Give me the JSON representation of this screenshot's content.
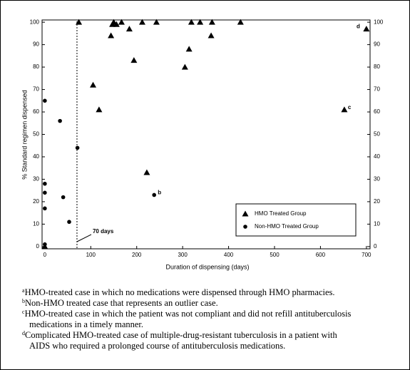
{
  "chart_data": {
    "type": "scatter",
    "x_label": "Duration of dispensing (days)",
    "y_label": "% Standard regimen dispensed",
    "xlim": [
      -6,
      708
    ],
    "ylim": [
      -1,
      101
    ],
    "xticks": [
      0,
      100,
      200,
      300,
      400,
      500,
      600,
      700
    ],
    "yticks": [
      0,
      10,
      20,
      30,
      40,
      50,
      60,
      70,
      80,
      90,
      100
    ],
    "reference_line": {
      "x": 70,
      "label": "70 days"
    },
    "legend": "lower right",
    "series": [
      {
        "name": "HMO Treated Group",
        "marker": "triangle",
        "color": "#000000",
        "x": [
          0,
          74,
          105,
          118,
          144,
          147,
          150,
          156,
          167,
          184,
          194,
          212,
          222,
          243,
          305,
          314,
          319,
          338,
          362,
          364,
          426,
          652,
          700
        ],
        "values": [
          0,
          100,
          72,
          61,
          94,
          99,
          100,
          99,
          100,
          97,
          83,
          100,
          33,
          100,
          80,
          88,
          100,
          100,
          94,
          100,
          100,
          61,
          97
        ],
        "point_labels": [
          null,
          null,
          null,
          null,
          null,
          null,
          null,
          null,
          null,
          null,
          null,
          null,
          null,
          null,
          null,
          null,
          null,
          null,
          null,
          null,
          null,
          "c",
          "d"
        ]
      },
      {
        "name": "Non-HMO Treated Group",
        "marker": "circle",
        "color": "#000000",
        "x": [
          0,
          0,
          0,
          0,
          0,
          33,
          40,
          53,
          71,
          238
        ],
        "values": [
          65,
          28,
          24,
          17,
          1,
          56,
          22,
          11,
          44,
          23
        ],
        "point_labels": [
          null,
          null,
          null,
          null,
          null,
          null,
          null,
          null,
          null,
          "b"
        ]
      }
    ]
  },
  "footnotes": [
    {
      "marker": "a",
      "text": "HMO-treated case in which no medications were dispensed through HMO pharmacies."
    },
    {
      "marker": "b",
      "text": "Non-HMO treated case that represents an outlier case."
    },
    {
      "marker": "c",
      "text": "HMO-treated case in which the patient was not compliant and did not refill antituberculosis medications in a timely manner."
    },
    {
      "marker": "d",
      "text": "Complicated HMO-treated case of multiple-drug-resistant tuberculosis in a patient with AIDS who required a prolonged course of antituberculosis medications."
    }
  ]
}
